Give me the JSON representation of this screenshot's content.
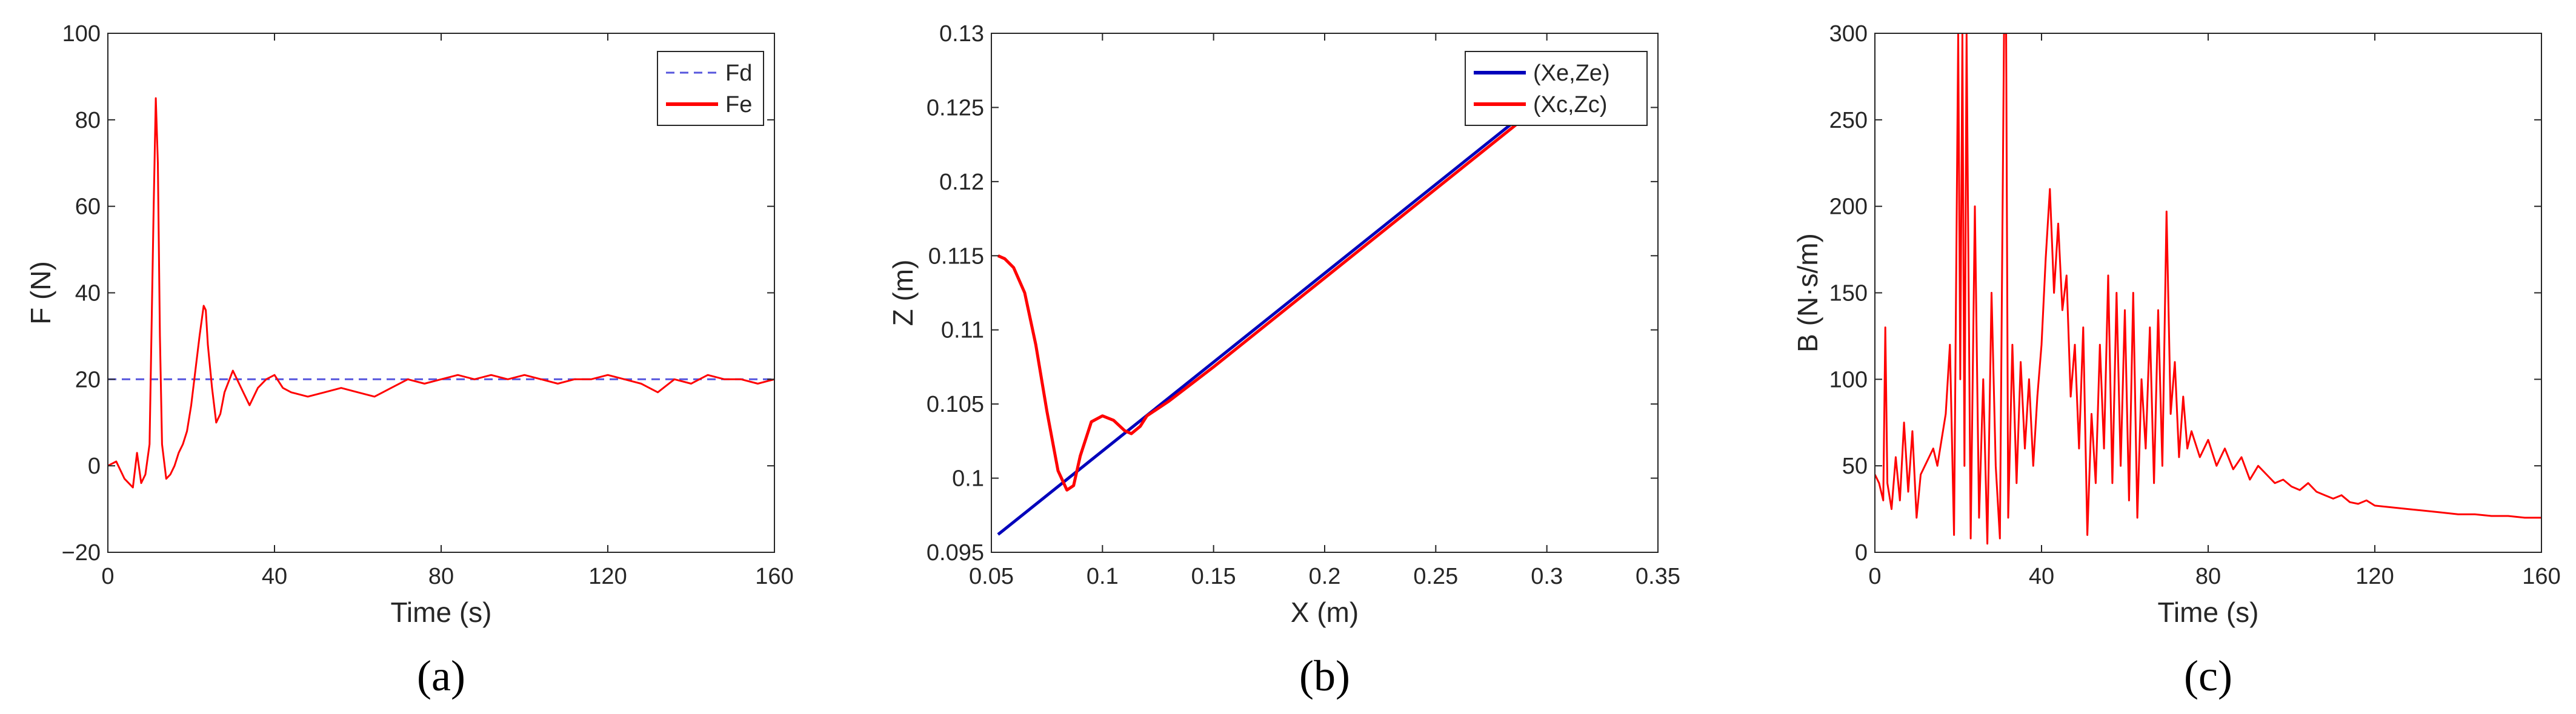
{
  "colors": {
    "red": "#ff0000",
    "blue_dashed": "#5555dd",
    "blue": "#0000bb",
    "axis": "#262626"
  },
  "chart_data": [
    {
      "type": "line",
      "panel": "(a)",
      "panel_letter": "a",
      "xlabel": "Time (s)",
      "ylabel": "F (N)",
      "xlim": [
        0,
        160
      ],
      "ylim": [
        -20,
        100
      ],
      "xticks": [
        0,
        40,
        80,
        120,
        160
      ],
      "yticks": [
        -20,
        0,
        20,
        40,
        60,
        80,
        100
      ],
      "ytick_labels": [
        "−20",
        "0",
        "20",
        "40",
        "60",
        "80",
        "100"
      ],
      "legend": {
        "position": "top-right",
        "entries": [
          "Fd",
          "Fe"
        ]
      },
      "series": [
        {
          "name": "Fd",
          "style": "dashed",
          "color": "#5555dd",
          "x": [
            0,
            160
          ],
          "y": [
            20,
            20
          ]
        },
        {
          "name": "Fe",
          "style": "solid",
          "color": "#ff0000",
          "x": [
            0,
            2,
            4,
            6,
            7,
            8,
            9,
            10,
            11,
            11.5,
            12,
            12.5,
            13,
            14,
            15,
            16,
            17,
            18,
            19,
            20,
            21,
            22,
            23,
            23.5,
            24,
            25,
            26,
            27,
            28,
            30,
            32,
            34,
            36,
            38,
            40,
            42,
            44,
            48,
            52,
            56,
            60,
            64,
            68,
            72,
            76,
            80,
            84,
            88,
            92,
            96,
            100,
            104,
            108,
            112,
            116,
            120,
            124,
            128,
            132,
            136,
            140,
            144,
            148,
            152,
            156,
            160
          ],
          "y": [
            0,
            1,
            -3,
            -5,
            3,
            -4,
            -2,
            5,
            60,
            85,
            70,
            30,
            5,
            -3,
            -2,
            0,
            3,
            5,
            8,
            14,
            22,
            30,
            37,
            36,
            28,
            18,
            10,
            12,
            17,
            22,
            18,
            14,
            18,
            20,
            21,
            18,
            17,
            16,
            17,
            18,
            17,
            16,
            18,
            20,
            19,
            20,
            21,
            20,
            21,
            20,
            21,
            20,
            19,
            20,
            20,
            21,
            20,
            19,
            17,
            20,
            19,
            21,
            20,
            20,
            19,
            20
          ]
        }
      ]
    },
    {
      "type": "line",
      "panel": "(b)",
      "panel_letter": "b",
      "xlabel": "X (m)",
      "ylabel": "Z (m)",
      "xlim": [
        0.05,
        0.35
      ],
      "ylim": [
        0.095,
        0.13
      ],
      "xticks": [
        0.05,
        0.1,
        0.15,
        0.2,
        0.25,
        0.3,
        0.35
      ],
      "xtick_labels": [
        "0.05",
        "0.1",
        "0.15",
        "0.2",
        "0.25",
        "0.3",
        "0.35"
      ],
      "yticks": [
        0.095,
        0.1,
        0.105,
        0.11,
        0.115,
        0.12,
        0.125,
        0.13
      ],
      "ytick_labels": [
        "0.095",
        "0.1",
        "0.105",
        "0.11",
        "0.115",
        "0.12",
        "0.125",
        "0.13"
      ],
      "legend": {
        "position": "top-right",
        "entries": [
          "(Xe,Ze)",
          "(Xc,Zc)"
        ]
      },
      "series": [
        {
          "name": "(Xe,Ze)",
          "style": "solid",
          "color": "#0000bb",
          "x": [
            0.053,
            0.3
          ],
          "y": [
            0.0962,
            0.1258
          ]
        },
        {
          "name": "(Xc,Zc)",
          "style": "solid",
          "color": "#ff0000",
          "x": [
            0.053,
            0.056,
            0.06,
            0.065,
            0.07,
            0.075,
            0.08,
            0.084,
            0.087,
            0.09,
            0.095,
            0.1,
            0.105,
            0.11,
            0.113,
            0.117,
            0.12,
            0.13,
            0.15,
            0.2,
            0.25,
            0.3
          ],
          "y": [
            0.115,
            0.1148,
            0.1142,
            0.1125,
            0.109,
            0.1045,
            0.1005,
            0.0992,
            0.0995,
            0.1015,
            0.1038,
            0.1042,
            0.1039,
            0.1032,
            0.103,
            0.1035,
            0.1042,
            0.1052,
            0.1075,
            0.1135,
            0.1195,
            0.1255
          ]
        }
      ]
    },
    {
      "type": "line",
      "panel": "(c)",
      "panel_letter": "c",
      "xlabel": "Time (s)",
      "ylabel": "B (N·s/m)",
      "xlim": [
        0,
        160
      ],
      "ylim": [
        0,
        300
      ],
      "xticks": [
        0,
        40,
        80,
        120,
        160
      ],
      "yticks": [
        0,
        50,
        100,
        150,
        200,
        250,
        300
      ],
      "series": [
        {
          "name": "",
          "style": "solid",
          "color": "#ff0000",
          "x": [
            0,
            1,
            2,
            2.5,
            3,
            4,
            5,
            6,
            7,
            8,
            9,
            10,
            11,
            12,
            13,
            14,
            15,
            16,
            17,
            18,
            19,
            20,
            20.5,
            21,
            21.5,
            22,
            23,
            24,
            25,
            26,
            27,
            28,
            29,
            30,
            31,
            31.5,
            32,
            33,
            34,
            35,
            36,
            37,
            38,
            39,
            40,
            41,
            42,
            43,
            44,
            45,
            46,
            47,
            48,
            49,
            50,
            51,
            52,
            53,
            54,
            55,
            56,
            57,
            58,
            59,
            60,
            61,
            62,
            63,
            64,
            65,
            66,
            67,
            68,
            69,
            70,
            71,
            72,
            73,
            74,
            75,
            76,
            78,
            80,
            82,
            84,
            86,
            88,
            90,
            92,
            94,
            96,
            98,
            100,
            102,
            104,
            106,
            108,
            110,
            112,
            114,
            116,
            118,
            120,
            124,
            128,
            132,
            136,
            140,
            144,
            148,
            152,
            156,
            160
          ],
          "y": [
            45,
            40,
            30,
            130,
            40,
            25,
            55,
            30,
            75,
            35,
            70,
            20,
            45,
            50,
            55,
            60,
            50,
            65,
            80,
            120,
            10,
            300,
            100,
            300,
            50,
            300,
            8,
            200,
            20,
            100,
            5,
            150,
            50,
            8,
            300,
            300,
            20,
            120,
            40,
            110,
            60,
            100,
            50,
            90,
            120,
            170,
            210,
            150,
            190,
            140,
            160,
            90,
            120,
            60,
            130,
            10,
            80,
            40,
            120,
            60,
            160,
            40,
            150,
            50,
            140,
            30,
            150,
            20,
            100,
            60,
            130,
            40,
            140,
            50,
            197,
            80,
            110,
            55,
            90,
            60,
            70,
            55,
            65,
            50,
            60,
            48,
            55,
            42,
            50,
            45,
            40,
            42,
            38,
            36,
            40,
            35,
            33,
            31,
            33,
            29,
            28,
            30,
            27,
            26,
            25,
            24,
            23,
            22,
            22,
            21,
            21,
            20,
            20
          ]
        }
      ]
    }
  ]
}
